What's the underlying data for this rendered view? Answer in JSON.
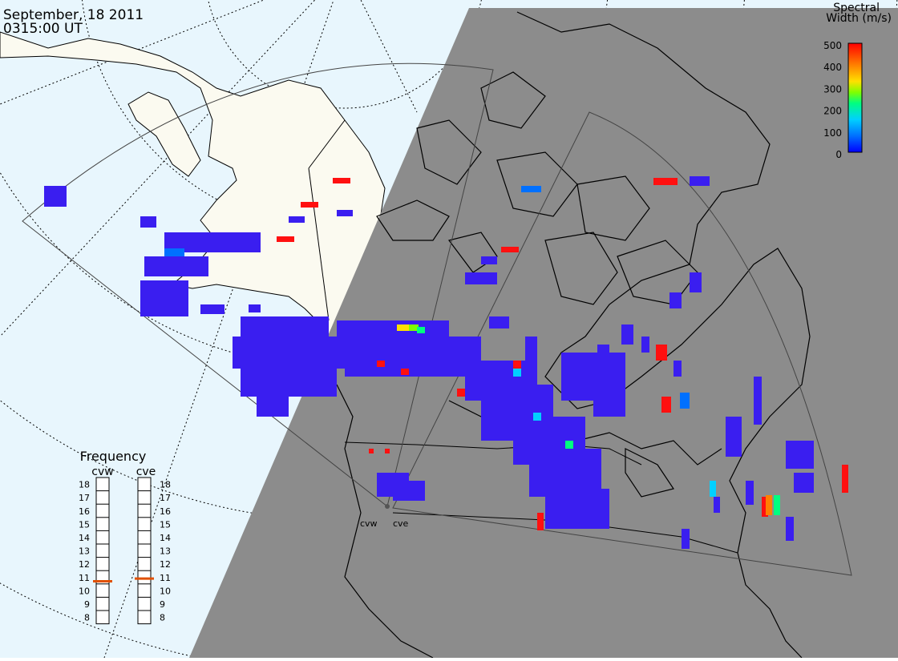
{
  "header": {
    "date": "September, 18 2011",
    "time": "0315:00 UT"
  },
  "colorbar": {
    "title_line1": "Spectral",
    "title_line2": "Width (m/s)",
    "ticks": [
      "500",
      "400",
      "300",
      "200",
      "100",
      "0"
    ],
    "colors": [
      "#0000ff",
      "#0070ff",
      "#00d0ff",
      "#00ff80",
      "#80ff00",
      "#ffe000",
      "#ff8000",
      "#ff0000"
    ]
  },
  "frequency": {
    "title": "Frequency",
    "radars": [
      {
        "label": "cvw",
        "current_mhz": 10.7
      },
      {
        "label": "cve",
        "current_mhz": 10.9
      }
    ],
    "scale": [
      "18",
      "17",
      "16",
      "15",
      "14",
      "13",
      "12",
      "11",
      "10",
      "9",
      "8"
    ],
    "indicator_color": "#e05000"
  },
  "sites": [
    {
      "label": "cvw"
    },
    {
      "label": "cve"
    }
  ],
  "colors": {
    "night": "#8c8c8c",
    "ocean": "#e8f6fd",
    "land_day": "#fbfaf0",
    "scatter_main": "#3a1ef0",
    "scatter_red": "#ff1010"
  }
}
